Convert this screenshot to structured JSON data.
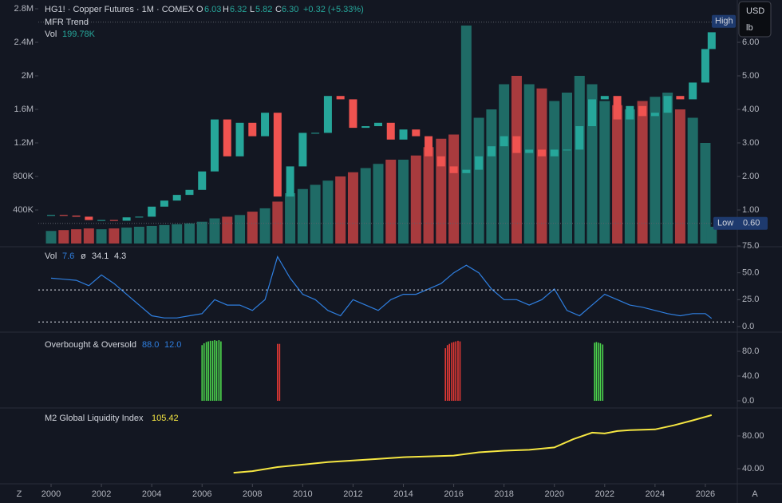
{
  "header": {
    "symbol": "HG1! · Copper Futures · 1M · COMEX",
    "o": "O",
    "o_value": "6.03",
    "h": "H",
    "h_value": "6.32",
    "l": "L",
    "l_value": "5.82",
    "c": "C",
    "c_value": "6.30",
    "change": "+0.32 (+5.33%)",
    "trend": "MFR Trend",
    "vol": "Vol",
    "vol_value": "199.78K"
  },
  "currency": {
    "unit": "USD",
    "measure": "lb"
  },
  "corner": {
    "left": "Z",
    "right": "A"
  },
  "chart_data": [
    {
      "type": "candlestick",
      "up_color": "#26a69a",
      "down_color": "#ef5350",
      "x": [
        2000,
        2000.5,
        2001,
        2001.5,
        2002,
        2002.5,
        2003,
        2003.5,
        2004,
        2004.5,
        2005,
        2005.5,
        2006,
        2006.5,
        2007,
        2007.5,
        2008,
        2008.5,
        2009,
        2009.5,
        2010,
        2010.5,
        2011,
        2011.5,
        2012,
        2012.5,
        2013,
        2013.5,
        2014,
        2014.5,
        2015,
        2015.5,
        2016,
        2016.5,
        2017,
        2017.5,
        2018,
        2018.5,
        2019,
        2019.5,
        2020,
        2020.5,
        2021,
        2021.5,
        2022,
        2022.5,
        2023,
        2023.5,
        2024,
        2024.5,
        2025,
        2025.5,
        2026,
        2026.25
      ],
      "values": [
        0.85,
        0.83,
        0.8,
        0.7,
        0.7,
        0.68,
        0.78,
        0.8,
        1.1,
        1.28,
        1.45,
        1.6,
        2.15,
        3.7,
        2.6,
        3.6,
        3.2,
        3.9,
        1.4,
        2.3,
        3.3,
        3.3,
        4.4,
        4.3,
        3.45,
        3.5,
        3.6,
        3.1,
        3.4,
        3.2,
        2.6,
        2.3,
        2.1,
        2.2,
        2.6,
        2.9,
        3.2,
        2.7,
        2.8,
        2.6,
        2.8,
        2.8,
        3.5,
        4.3,
        4.4,
        3.7,
        4.1,
        3.8,
        3.9,
        4.4,
        4.3,
        4.8,
        5.8,
        6.3
      ],
      "ylim": [
        0,
        7.2
      ],
      "yticks": [
        {
          "value": 1,
          "label": "1.00"
        },
        {
          "value": 2,
          "label": "2.00"
        },
        {
          "value": 3,
          "label": "3.00"
        },
        {
          "value": 4,
          "label": "4.00"
        },
        {
          "value": 5,
          "label": "5.00"
        },
        {
          "value": 6,
          "label": "6.00"
        }
      ],
      "high": {
        "label": "High",
        "value": 6.6
      },
      "low": {
        "label": "Low",
        "value": 0.6,
        "value_label": "0.60"
      }
    },
    {
      "type": "bar",
      "up_color": "#1f6b66",
      "down_color": "#a83b3e",
      "values": [
        150000,
        160000,
        170000,
        180000,
        170000,
        180000,
        190000,
        200000,
        210000,
        220000,
        230000,
        240000,
        260000,
        300000,
        320000,
        340000,
        380000,
        420000,
        500000,
        600000,
        650000,
        700000,
        750000,
        800000,
        850000,
        900000,
        950000,
        1000000,
        1000000,
        1050000,
        1150000,
        1250000,
        1300000,
        2600000,
        1500000,
        1600000,
        1900000,
        2000000,
        1900000,
        1850000,
        1700000,
        1800000,
        2000000,
        1900000,
        1700000,
        1650000,
        1600000,
        1700000,
        1750000,
        1800000,
        1600000,
        1500000,
        1200000,
        199780
      ],
      "ylim": [
        0,
        2880000
      ],
      "yticks": [
        {
          "value": 400000,
          "label": "400K"
        },
        {
          "value": 800000,
          "label": "800K"
        },
        {
          "value": 1200000,
          "label": "1.2M"
        },
        {
          "value": 1600000,
          "label": "1.6M"
        },
        {
          "value": 2000000,
          "label": "2M"
        },
        {
          "value": 2400000,
          "label": "2.4M"
        },
        {
          "value": 2800000,
          "label": "2.8M"
        }
      ]
    },
    {
      "type": "line",
      "title": "Vol",
      "sign": "ø",
      "color": "#2f7fe0",
      "values": [
        45,
        44,
        43,
        38,
        48,
        40,
        30,
        20,
        10,
        8,
        8,
        10,
        12,
        25,
        20,
        20,
        15,
        25,
        65,
        45,
        30,
        25,
        15,
        10,
        25,
        20,
        15,
        25,
        30,
        30,
        35,
        40,
        50,
        57,
        50,
        35,
        25,
        25,
        20,
        25,
        35,
        15,
        10,
        20,
        30,
        25,
        20,
        18,
        15,
        12,
        10,
        12,
        12,
        7.6
      ],
      "levels": [
        34.1,
        4.3
      ],
      "ylim": [
        0,
        75
      ],
      "yticks": [
        {
          "value": 0,
          "label": "0.0"
        },
        {
          "value": 25,
          "label": "25.0"
        },
        {
          "value": 50,
          "label": "50.0"
        },
        {
          "value": 75,
          "label": "75.0"
        }
      ]
    },
    {
      "type": "bar",
      "title": "Overbought & Oversold",
      "params": [
        "88.0",
        "12.0"
      ],
      "series": [
        {
          "color": "#4cd44c",
          "x": [
            2006.0,
            2006.08,
            2006.17,
            2006.25,
            2006.33,
            2006.42,
            2006.5,
            2006.58,
            2006.67,
            2006.75
          ],
          "values": [
            90,
            93,
            95,
            96,
            97,
            97,
            98,
            97,
            98,
            96
          ]
        },
        {
          "color": "#e53935",
          "x": [
            2009.0,
            2009.08
          ],
          "values": [
            92,
            92
          ]
        },
        {
          "color": "#e53935",
          "x": [
            2015.67,
            2015.75,
            2015.83,
            2015.92,
            2016.0,
            2016.08,
            2016.17,
            2016.25
          ],
          "values": [
            85,
            90,
            92,
            94,
            95,
            96,
            97,
            96
          ]
        },
        {
          "color": "#4cd44c",
          "x": [
            2021.6,
            2021.67,
            2021.75,
            2021.83,
            2021.92
          ],
          "values": [
            94,
            95,
            94,
            93,
            91
          ]
        }
      ],
      "ylim": [
        0,
        100
      ],
      "yticks": [
        {
          "value": 0,
          "label": "0.0"
        },
        {
          "value": 40,
          "label": "40.0"
        },
        {
          "value": 80,
          "label": "80.0"
        }
      ]
    },
    {
      "type": "line",
      "title": "M2 Global Liquidity Index",
      "color": "#f5e642",
      "x": [
        2007.25,
        2008,
        2009,
        2010,
        2011,
        2012,
        2013,
        2014,
        2015,
        2016,
        2017,
        2018,
        2019,
        2020,
        2020.75,
        2021.5,
        2022,
        2022.5,
        2023,
        2024,
        2024.75,
        2025.5,
        2026.25
      ],
      "values": [
        35,
        37,
        42,
        45,
        48,
        50,
        52,
        54,
        55,
        56,
        60,
        62,
        63,
        66,
        76,
        84,
        83,
        86,
        87,
        88,
        93,
        99,
        105.42
      ],
      "ylim": [
        20,
        110
      ],
      "yticks": [
        {
          "value": 40,
          "label": "40.00"
        },
        {
          "value": 80,
          "label": "80.00"
        }
      ],
      "xlim": [
        1997.97,
        2027.27
      ],
      "xticks": [
        2000,
        2002,
        2004,
        2006,
        2008,
        2010,
        2012,
        2014,
        2016,
        2018,
        2020,
        2022,
        2024,
        2026
      ]
    }
  ]
}
